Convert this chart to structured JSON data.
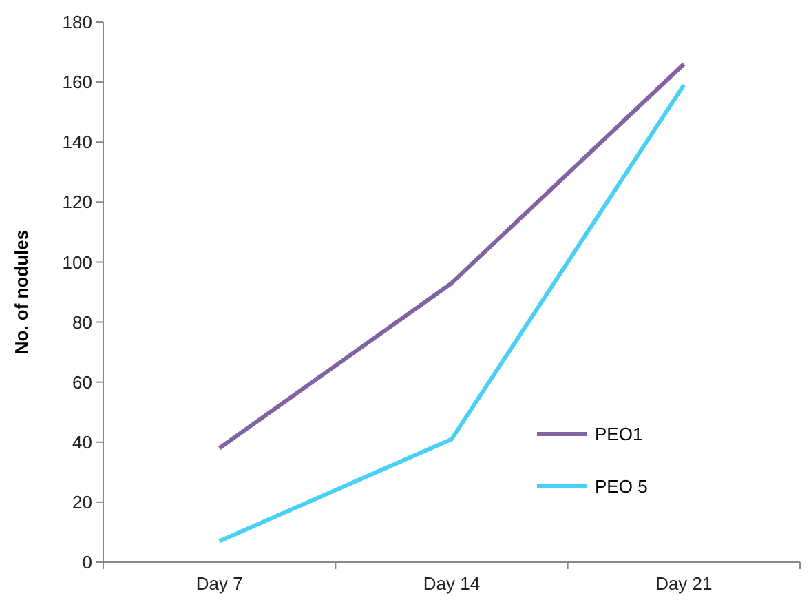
{
  "chart_data": {
    "type": "line",
    "ylabel": "No. of nodules",
    "categories": [
      "Day 7",
      "Day 14",
      "Day 21"
    ],
    "series": [
      {
        "name": "PEO1",
        "color": "#8064a2",
        "values": [
          38,
          93,
          166
        ]
      },
      {
        "name": "PEO 5",
        "color": "#4bd0f5",
        "values": [
          7,
          41,
          159
        ]
      }
    ],
    "ylim": [
      0,
      180
    ],
    "yticks": [
      0,
      20,
      40,
      60,
      80,
      100,
      120,
      140,
      160,
      180
    ],
    "grid": false,
    "legend": "right",
    "marker": "none",
    "line_style": "solid"
  }
}
